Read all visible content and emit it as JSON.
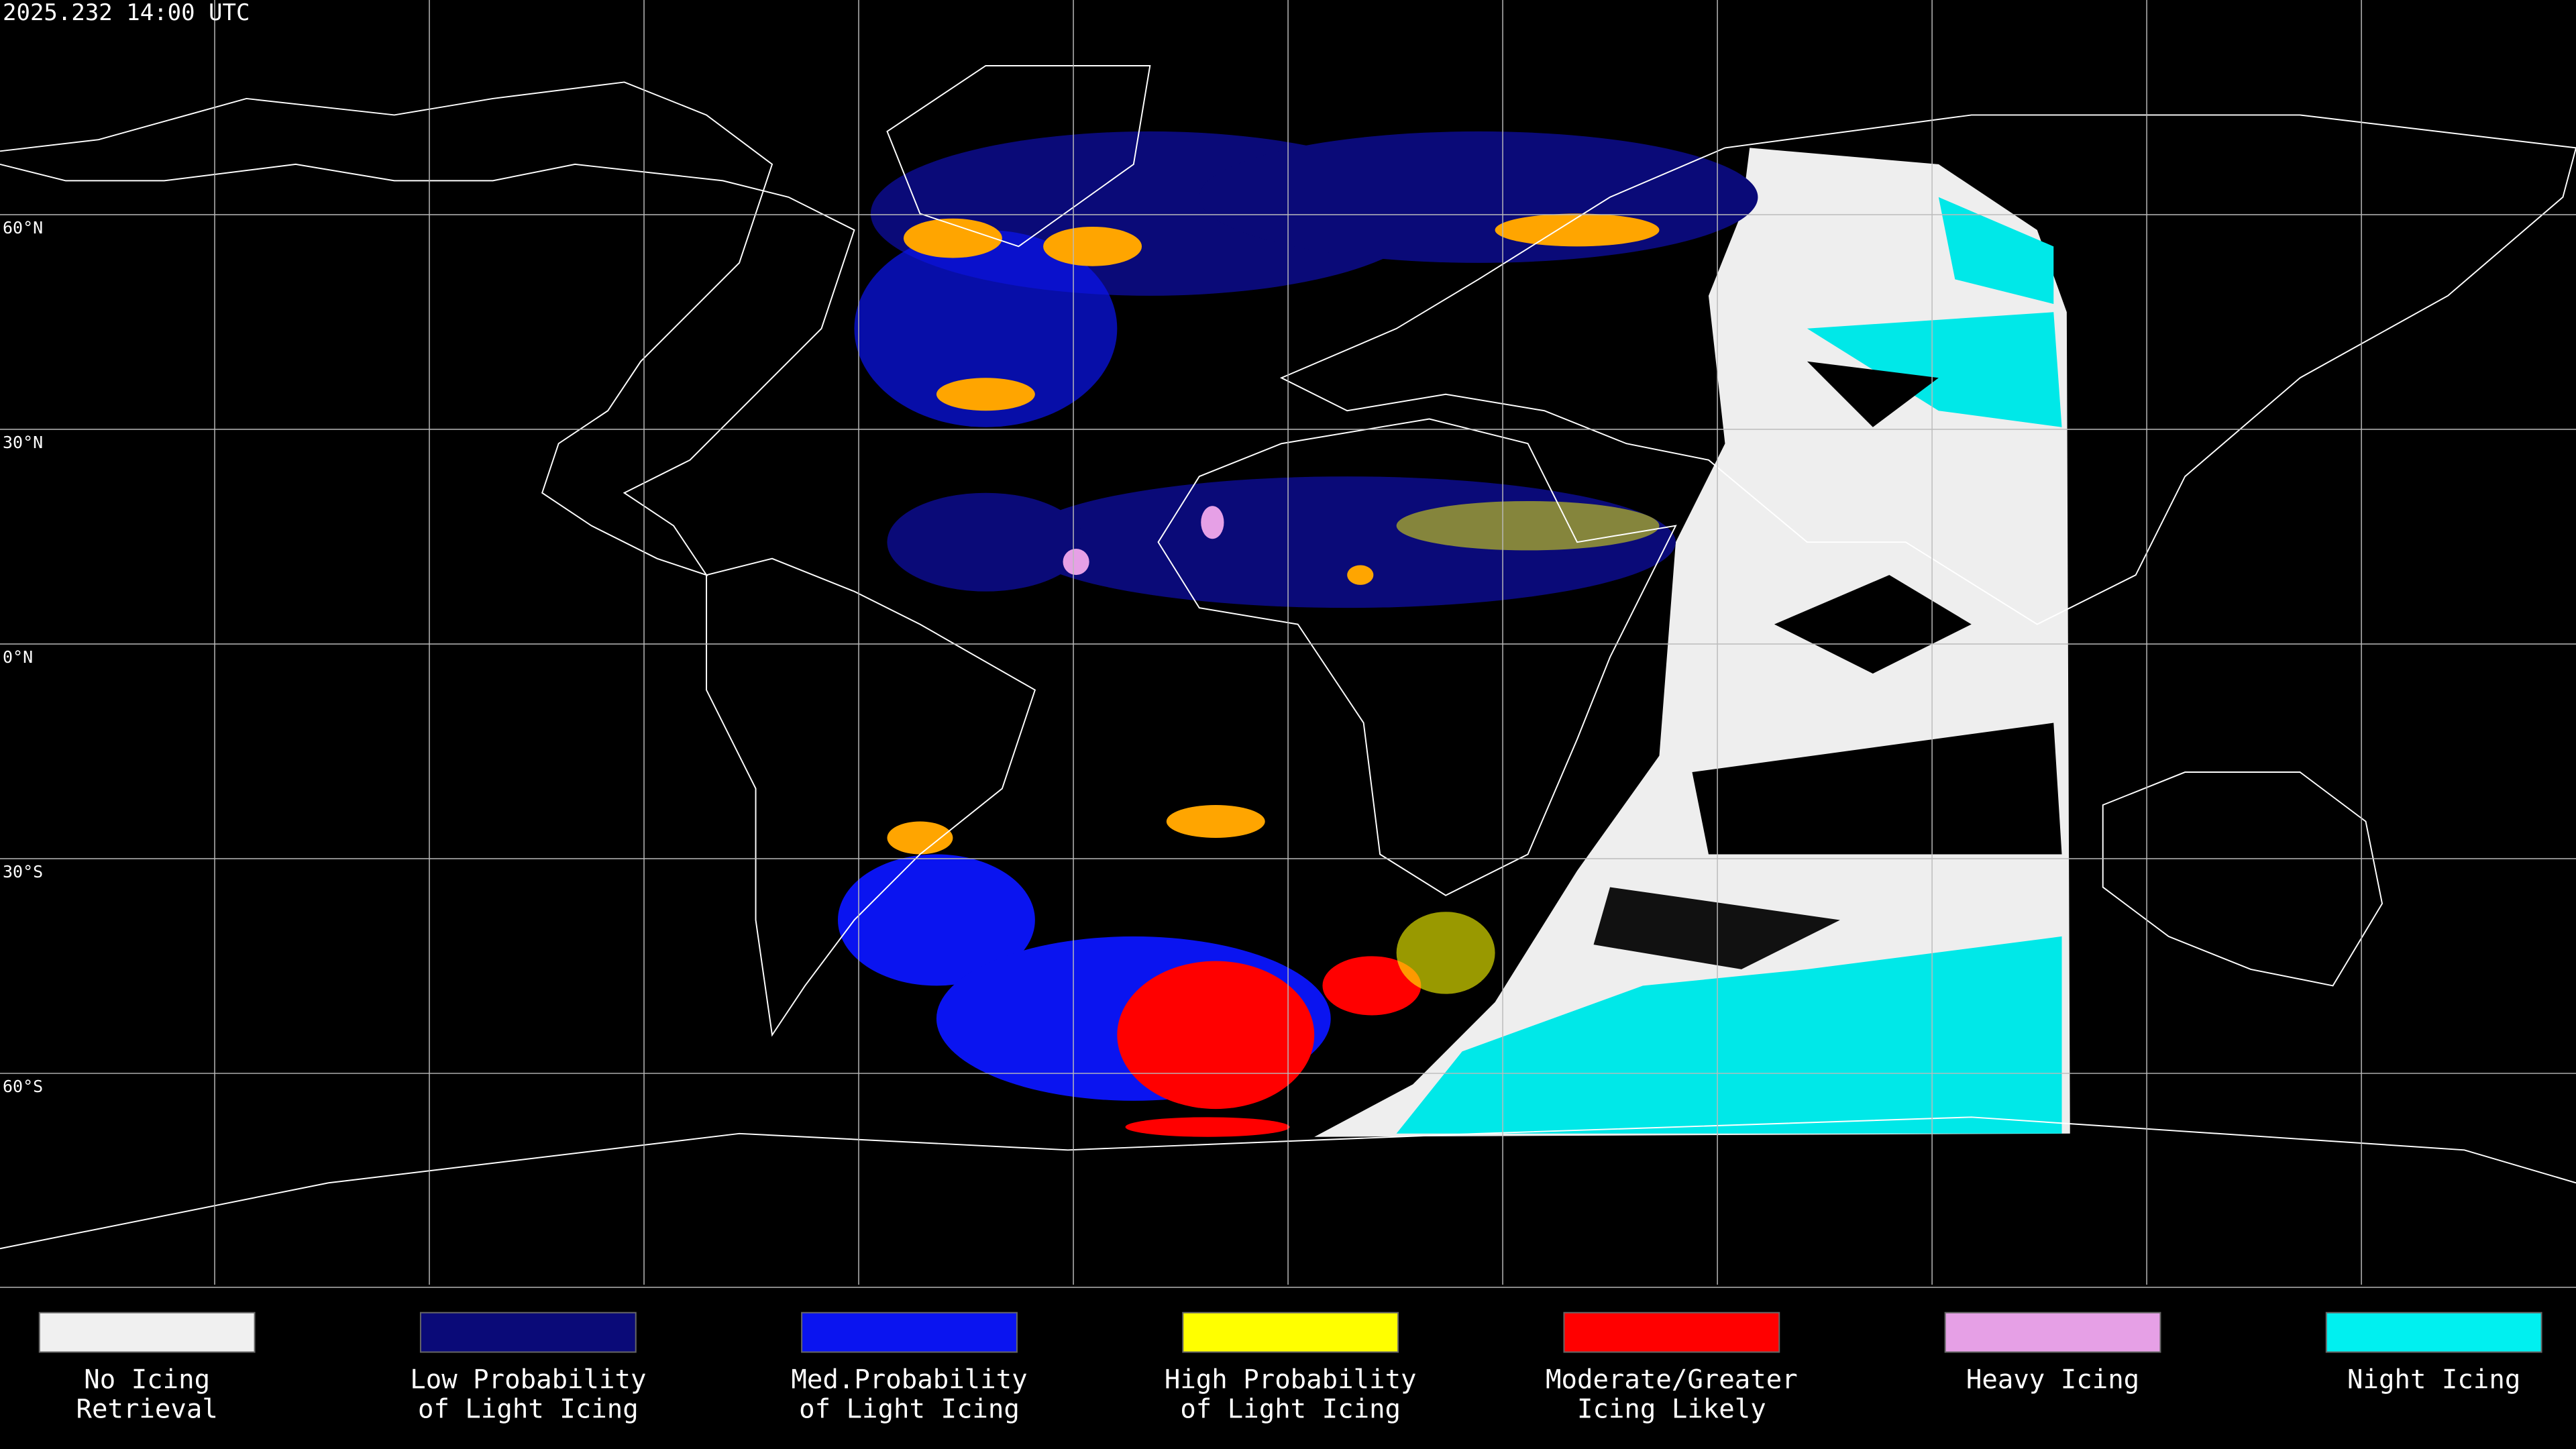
{
  "timestamp": "2025.232 14:00 UTC",
  "latitude_labels": [
    "60°N",
    "30°N",
    "0°N",
    "30°S",
    "60°S"
  ],
  "legend": [
    {
      "lines": [
        "No Icing",
        "Retrieval"
      ],
      "color": "#f0f0f0"
    },
    {
      "lines": [
        "Low Probability",
        "of Light Icing"
      ],
      "color": "#0a0a78"
    },
    {
      "lines": [
        "Med.Probability",
        "of Light Icing"
      ],
      "color": "#0a14f0"
    },
    {
      "lines": [
        "High Probability",
        "of Light Icing"
      ],
      "color": "#ffff00"
    },
    {
      "lines": [
        "Moderate/Greater",
        "Icing Likely"
      ],
      "color": "#ff0000"
    },
    {
      "lines": [
        "Heavy Icing"
      ],
      "color": "#e6a0e6"
    },
    {
      "lines": [
        "Night Icing"
      ],
      "color": "#00f0f0"
    }
  ]
}
